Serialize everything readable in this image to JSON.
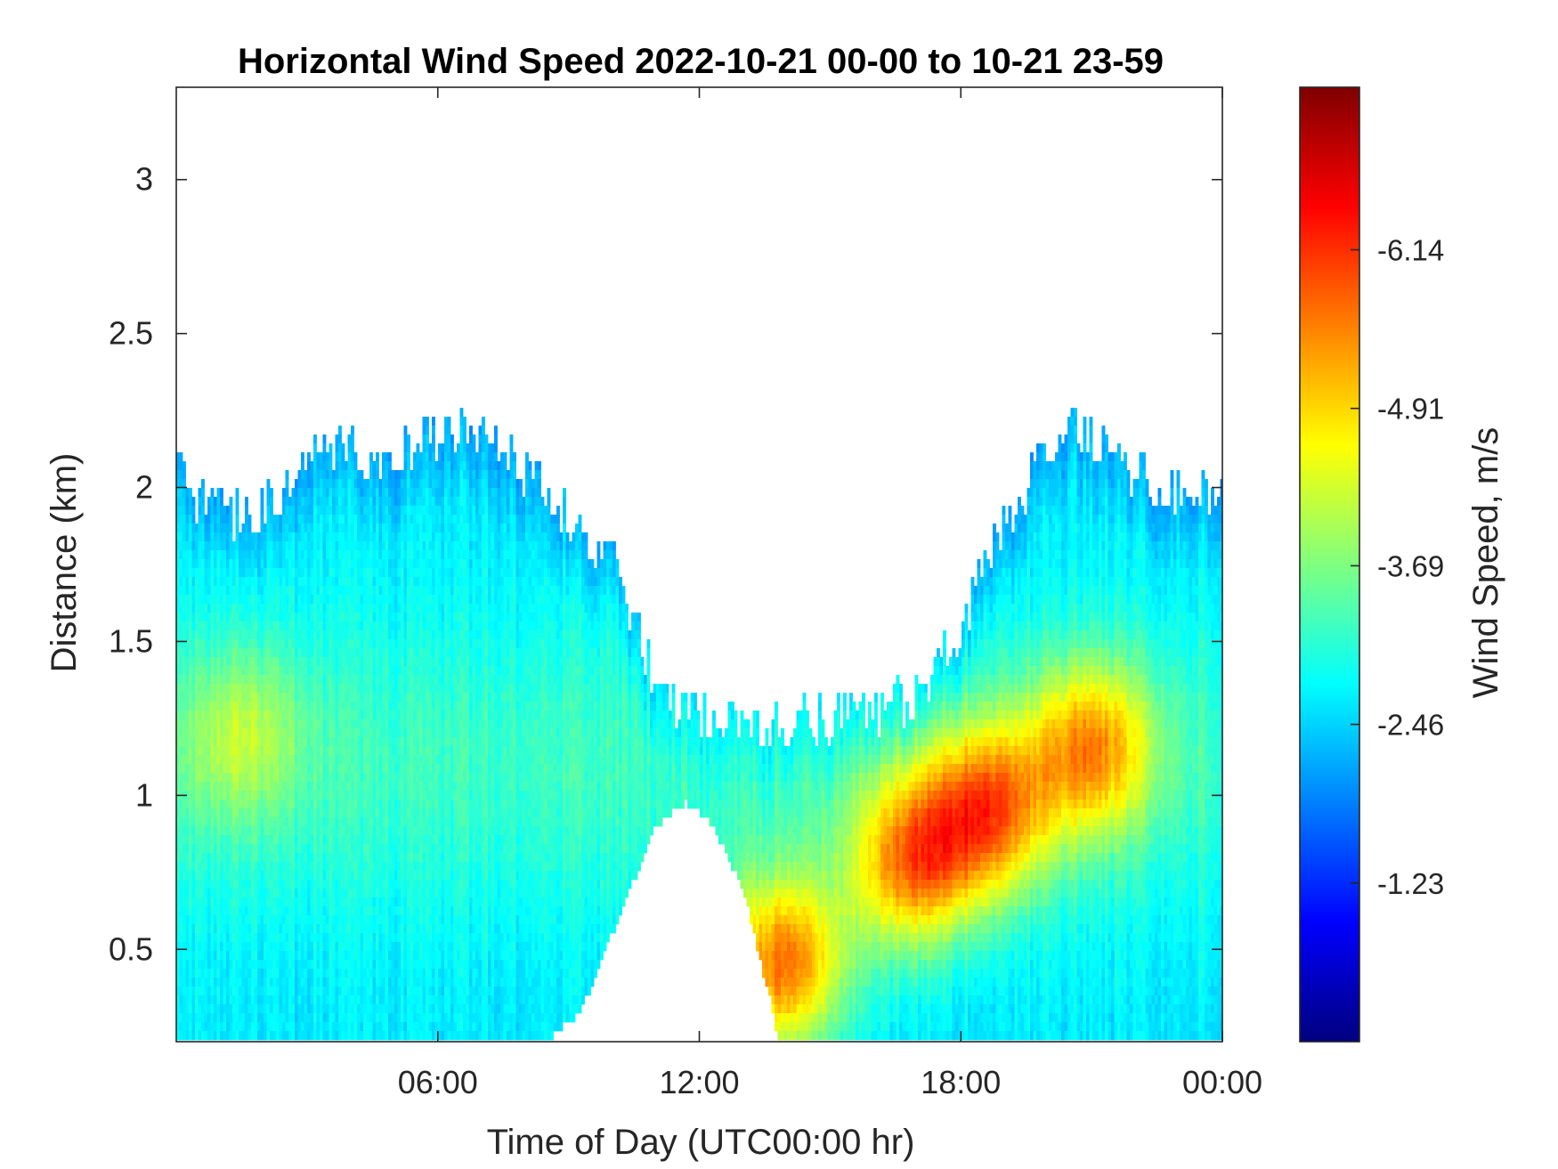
{
  "chart_data": {
    "type": "heatmap",
    "title": "Horizontal Wind Speed 2022-10-21 00-00 to 10-21 23-59",
    "xlabel": "Time of Day (UTC00:00 hr)",
    "ylabel": "Distance (km)",
    "x_range_hours": [
      0,
      24
    ],
    "ylim": [
      0.2,
      3.3
    ],
    "x_ticks": [
      {
        "value": 6,
        "label": "06:00"
      },
      {
        "value": 12,
        "label": "12:00"
      },
      {
        "value": 18,
        "label": "18:00"
      },
      {
        "value": 24,
        "label": "00:00"
      }
    ],
    "y_ticks": [
      {
        "value": 0.5,
        "label": "0.5"
      },
      {
        "value": 1,
        "label": "1"
      },
      {
        "value": 1.5,
        "label": "1.5"
      },
      {
        "value": 2,
        "label": "2"
      },
      {
        "value": 2.5,
        "label": "2.5"
      },
      {
        "value": 3,
        "label": "3"
      }
    ],
    "colorbar": {
      "label": "Wind Speed, m/s",
      "colormap": "jet",
      "range": [
        -0.0,
        -7.4
      ],
      "ticks": [
        {
          "value": -1.23,
          "label": "-1.23"
        },
        {
          "value": -2.46,
          "label": "-2.46"
        },
        {
          "value": -3.69,
          "label": "-3.69"
        },
        {
          "value": -4.91,
          "label": "-4.91"
        },
        {
          "value": -6.14,
          "label": "-6.14"
        }
      ]
    },
    "grid": false,
    "data_top_km": [
      [
        0.0,
        2.1
      ],
      [
        0.5,
        1.95
      ],
      [
        1.5,
        1.9
      ],
      [
        2.5,
        2.0
      ],
      [
        3.0,
        2.15
      ],
      [
        4.5,
        2.1
      ],
      [
        5.5,
        2.15
      ],
      [
        7.0,
        2.2
      ],
      [
        8.0,
        2.05
      ],
      [
        9.0,
        1.9
      ],
      [
        10.0,
        1.75
      ],
      [
        10.8,
        1.45
      ],
      [
        11.3,
        1.3
      ],
      [
        12.5,
        1.25
      ],
      [
        13.2,
        1.25
      ],
      [
        13.6,
        1.2
      ],
      [
        14.0,
        1.25
      ],
      [
        15.0,
        1.25
      ],
      [
        16.5,
        1.3
      ],
      [
        17.2,
        1.35
      ],
      [
        18.0,
        1.55
      ],
      [
        19.0,
        1.9
      ],
      [
        20.0,
        2.1
      ],
      [
        20.5,
        2.2
      ],
      [
        21.5,
        2.1
      ],
      [
        22.5,
        2.0
      ],
      [
        23.99,
        1.95
      ]
    ],
    "data_bottom_km": [
      [
        0.0,
        0.2
      ],
      [
        8.5,
        0.2
      ],
      [
        9.3,
        0.3
      ],
      [
        10.0,
        0.55
      ],
      [
        11.0,
        0.9
      ],
      [
        11.7,
        0.98
      ],
      [
        12.3,
        0.9
      ],
      [
        13.0,
        0.7
      ],
      [
        13.6,
        0.35
      ],
      [
        13.8,
        0.2
      ],
      [
        23.99,
        0.2
      ]
    ],
    "intensity_cores": [
      {
        "x_hours": 16.9,
        "y_km": 0.78,
        "speed": -5.3
      },
      {
        "x_hours": 18.6,
        "y_km": 0.95,
        "speed": -5.4
      },
      {
        "x_hours": 21.0,
        "y_km": 1.15,
        "speed": -5.0
      },
      {
        "x_hours": 13.9,
        "y_km": 0.45,
        "speed": -5.6
      },
      {
        "x_hours": 1.5,
        "y_km": 1.2,
        "speed": -3.7
      }
    ]
  }
}
